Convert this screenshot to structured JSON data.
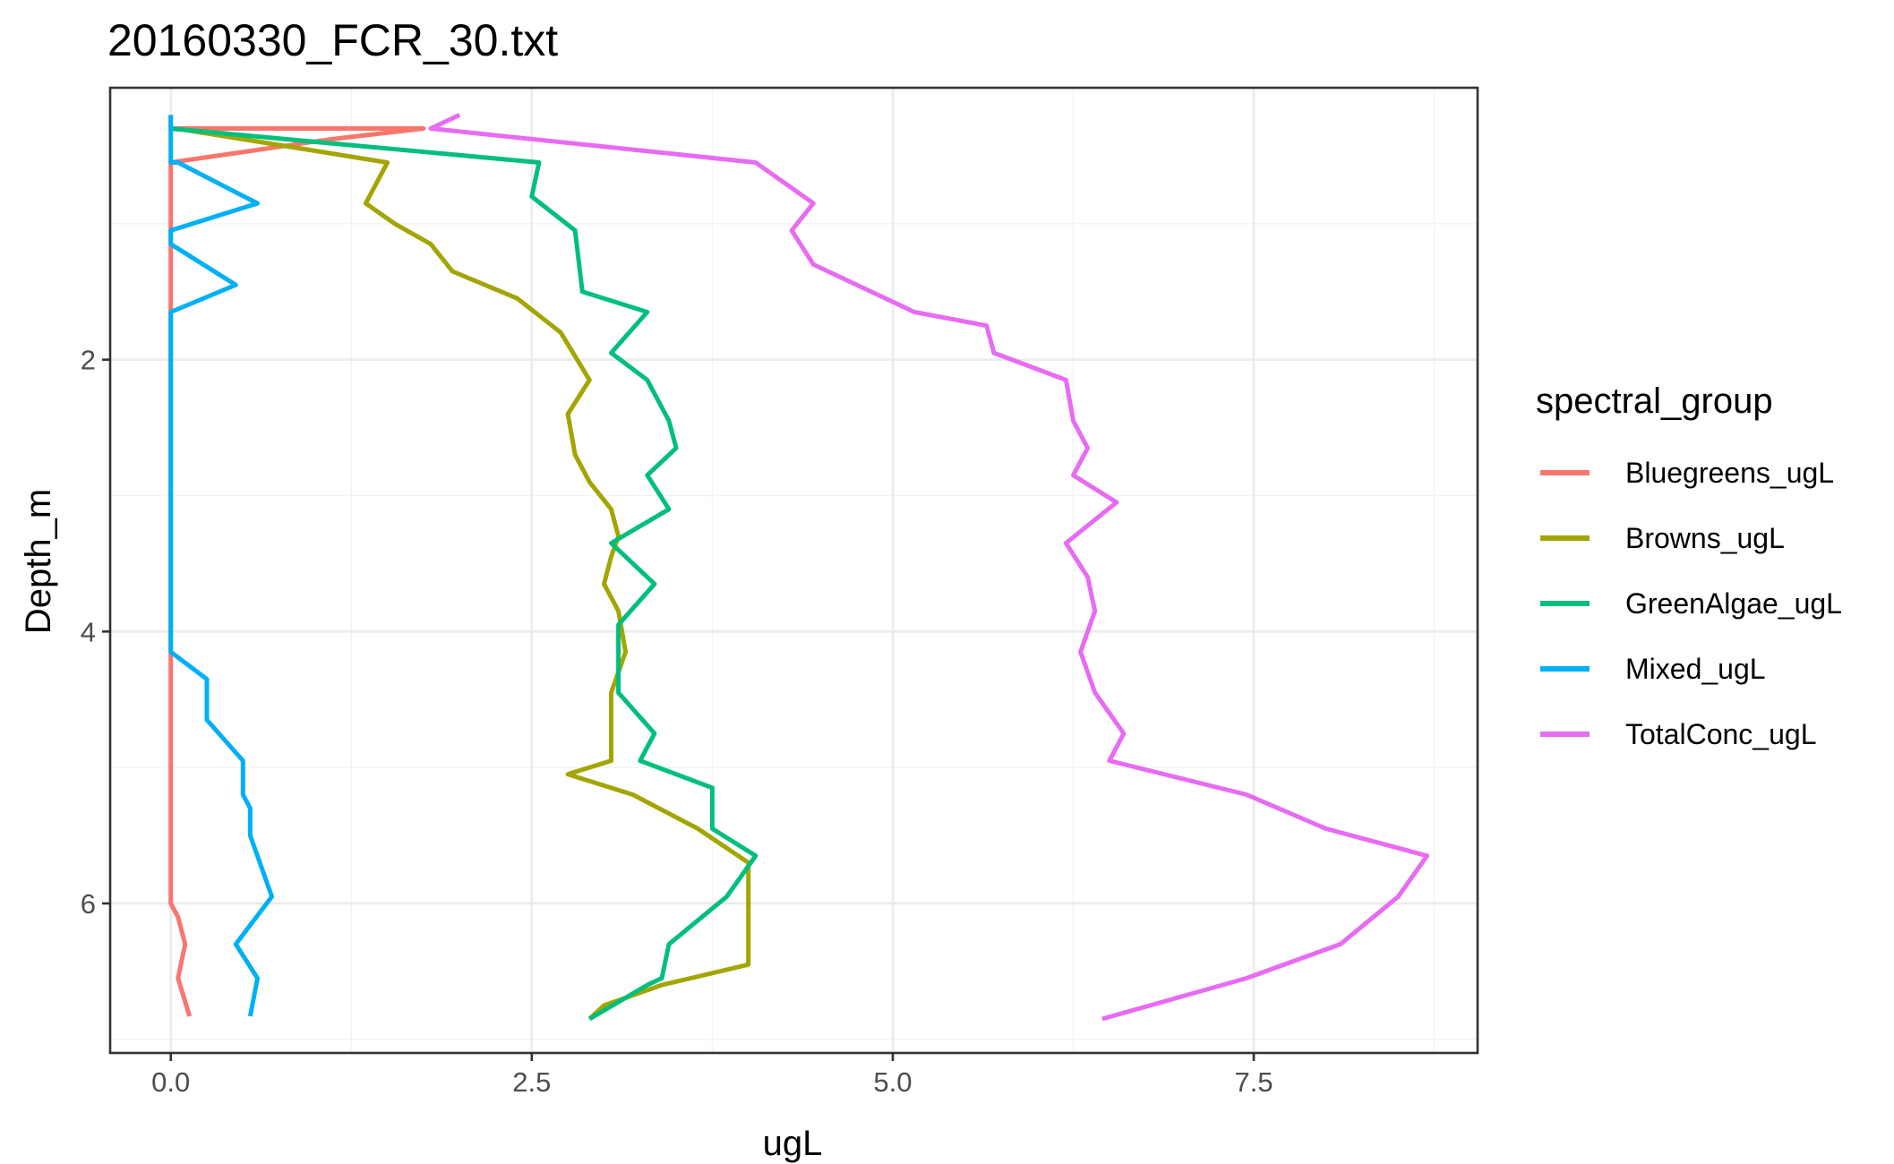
{
  "chart_data": {
    "type": "line",
    "title": "20160330_FCR_30.txt",
    "xlabel": "ugL",
    "ylabel": "Depth_m",
    "xlim": [
      -0.42,
      9.05
    ],
    "ylim": [
      7.1,
      0.0
    ],
    "y_reversed": true,
    "grid": true,
    "x_ticks": [
      0.0,
      2.5,
      5.0,
      7.5
    ],
    "x_tick_labels": [
      "0.0",
      "2.5",
      "5.0",
      "7.5"
    ],
    "y_ticks": [
      2,
      4,
      6
    ],
    "y_tick_labels": [
      "2",
      "4",
      "6"
    ],
    "x_minor": [
      1.25,
      3.75,
      6.25,
      8.75
    ],
    "y_minor": [
      1,
      3,
      5,
      7
    ],
    "legend": {
      "title": "spectral_group",
      "position": "right"
    },
    "series": [
      {
        "name": "Bluegreens_ugL",
        "color": "#F8766D",
        "x": [
          0.0,
          0.0,
          1.75,
          1.1,
          0.0,
          0.0,
          0.0,
          0.0,
          0.0,
          0.0,
          0.0,
          0.0,
          0.0,
          0.0,
          0.0,
          0.0,
          0.0,
          0.0,
          0.0,
          0.0,
          0.0,
          0.0,
          0.0,
          0.0,
          0.0,
          0.0,
          0.0,
          0.0,
          0.05,
          0.1,
          0.05,
          0.13
        ],
        "y": [
          0.2,
          0.3,
          0.3,
          0.38,
          0.55,
          0.8,
          1.05,
          1.3,
          1.5,
          1.75,
          2.0,
          2.5,
          3.0,
          3.5,
          4.0,
          4.1,
          4.3,
          4.6,
          4.8,
          5.0,
          5.2,
          5.4,
          5.5,
          5.6,
          5.7,
          5.8,
          5.9,
          6.0,
          6.1,
          6.3,
          6.55,
          6.83
        ]
      },
      {
        "name": "Browns_ugL",
        "color": "#A3A500",
        "x": [
          0.0,
          0.1,
          1.5,
          1.35,
          1.55,
          1.8,
          1.95,
          2.4,
          2.7,
          2.9,
          2.75,
          2.8,
          2.9,
          3.05,
          3.1,
          3.05,
          3.0,
          3.1,
          3.15,
          3.05,
          3.05,
          3.05,
          2.75,
          3.2,
          3.65,
          4.0,
          4.0,
          4.0,
          4.0,
          3.4,
          3.0,
          2.9
        ],
        "y": [
          0.3,
          0.31,
          0.55,
          0.85,
          1.0,
          1.15,
          1.35,
          1.55,
          1.8,
          2.15,
          2.4,
          2.7,
          2.9,
          3.1,
          3.3,
          3.45,
          3.65,
          3.85,
          4.15,
          4.45,
          4.7,
          4.95,
          5.05,
          5.2,
          5.45,
          5.7,
          6.0,
          6.3,
          6.45,
          6.6,
          6.75,
          6.85
        ]
      },
      {
        "name": "GreenAlgae_ugL",
        "color": "#00BF7D",
        "x": [
          0.0,
          2.55,
          2.5,
          2.8,
          2.85,
          3.3,
          3.05,
          3.3,
          3.45,
          3.5,
          3.3,
          3.45,
          3.05,
          3.35,
          3.1,
          3.1,
          3.1,
          3.35,
          3.25,
          3.75,
          3.75,
          4.05,
          3.85,
          3.45,
          3.4,
          3.3,
          2.9
        ],
        "y": [
          0.3,
          0.55,
          0.8,
          1.05,
          1.5,
          1.65,
          1.95,
          2.15,
          2.45,
          2.65,
          2.85,
          3.1,
          3.35,
          3.65,
          3.95,
          4.3,
          4.45,
          4.75,
          4.95,
          5.15,
          5.45,
          5.65,
          5.95,
          6.3,
          6.55,
          6.6,
          6.85
        ]
      },
      {
        "name": "Mixed_ugL",
        "color": "#00B0F6",
        "x": [
          0.0,
          0.0,
          0.05,
          0.6,
          0.0,
          0.0,
          0.45,
          0.0,
          0.0,
          0.0,
          0.0,
          0.0,
          0.0,
          0.0,
          0.0,
          0.0,
          0.25,
          0.25,
          0.5,
          0.5,
          0.55,
          0.55,
          0.7,
          0.45,
          0.6,
          0.55
        ],
        "y": [
          0.2,
          0.55,
          0.55,
          0.85,
          1.05,
          1.15,
          1.45,
          1.65,
          2.0,
          2.5,
          3.0,
          3.5,
          3.9,
          4.05,
          4.1,
          4.15,
          4.35,
          4.65,
          4.95,
          5.2,
          5.3,
          5.5,
          5.95,
          6.3,
          6.55,
          6.83
        ]
      },
      {
        "name": "TotalConc_ugL",
        "color": "#E76BF3",
        "x": [
          2.0,
          1.8,
          4.05,
          4.45,
          4.3,
          4.45,
          5.15,
          5.65,
          5.7,
          6.2,
          6.25,
          6.35,
          6.25,
          6.55,
          6.2,
          6.35,
          6.4,
          6.3,
          6.4,
          6.6,
          6.5,
          7.45,
          8.0,
          8.7,
          8.5,
          8.1,
          7.45,
          6.45
        ],
        "y": [
          0.2,
          0.3,
          0.55,
          0.85,
          1.05,
          1.3,
          1.65,
          1.75,
          1.95,
          2.15,
          2.45,
          2.65,
          2.85,
          3.05,
          3.35,
          3.6,
          3.85,
          4.15,
          4.45,
          4.75,
          4.95,
          5.2,
          5.45,
          5.65,
          5.95,
          6.3,
          6.55,
          6.85
        ]
      }
    ]
  }
}
